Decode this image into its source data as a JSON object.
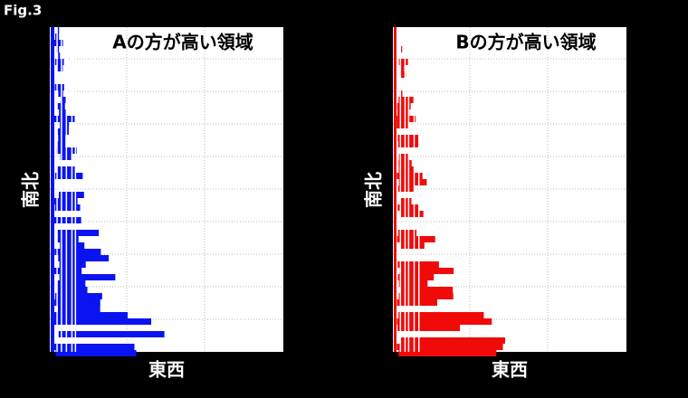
{
  "figure_label": "Fig.3",
  "panels": [
    {
      "title": "Aの方が高い領域",
      "x_label": "東西",
      "y_label": "南北",
      "color": "#0a14f0"
    },
    {
      "title": "Bの方が高い領域",
      "x_label": "東西",
      "y_label": "南北",
      "color": "#f00a0a"
    }
  ]
}
